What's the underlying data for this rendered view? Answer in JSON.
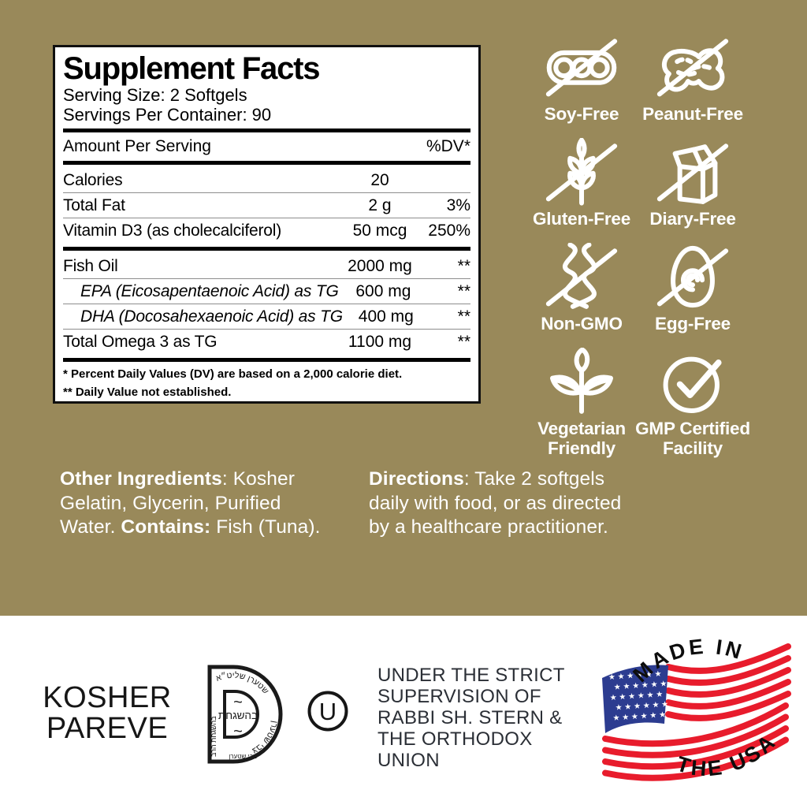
{
  "colors": {
    "olive_background": "#99895a",
    "panel_border": "#101010",
    "flag_red": "#e81c2c",
    "flag_blue": "#2c3c90",
    "text_white": "#ffffff",
    "text_dark": "#2b2f36"
  },
  "panel": {
    "title": "Supplement Facts",
    "serving_size": "Serving Size: 2 Softgels",
    "servings_per_container": "Servings Per Container: 90",
    "header": {
      "left": "Amount Per Serving",
      "right": "%DV*"
    },
    "sections": [
      {
        "rows": [
          {
            "name": "Calories",
            "amount": "20",
            "dv": ""
          },
          {
            "name": "Total Fat",
            "amount": "2 g",
            "dv": "3%"
          },
          {
            "name": "Vitamin D3 (as cholecalciferol)",
            "amount": "50 mcg",
            "dv": "250%"
          }
        ]
      },
      {
        "rows": [
          {
            "name": "Fish Oil",
            "amount": "2000 mg",
            "dv": "**"
          },
          {
            "name": "EPA (Eicosapentaenoic Acid) as TG",
            "amount": "600 mg",
            "dv": "**",
            "italic": true,
            "indent": true
          },
          {
            "name": "DHA (Docosahexaenoic Acid) as TG",
            "amount": "400 mg",
            "dv": "**",
            "italic": true,
            "indent": true
          },
          {
            "name": "Total Omega 3 as TG",
            "amount": "1100 mg",
            "dv": "**"
          }
        ]
      }
    ],
    "footnotes": [
      "* Percent Daily Values (DV) are based on a 2,000 calorie diet.",
      "** Daily Value not established."
    ]
  },
  "badges": [
    {
      "icon": "soy-free-icon",
      "label": "Soy-Free"
    },
    {
      "icon": "peanut-free-icon",
      "label": "Peanut-Free"
    },
    {
      "icon": "gluten-free-icon",
      "label": "Gluten-Free"
    },
    {
      "icon": "dairy-free-icon",
      "label": "Diary-Free"
    },
    {
      "icon": "non-gmo-icon",
      "label": "Non-GMO"
    },
    {
      "icon": "egg-free-icon",
      "label": "Egg-Free"
    },
    {
      "icon": "vegetarian-icon",
      "label": "Vegetarian Friendly"
    },
    {
      "icon": "gmp-icon",
      "label": "GMP Certified Facility"
    }
  ],
  "other_ingredients": {
    "label": "Other Ingredients",
    "text": ":  Kosher Gelatin, Glycerin, Purified Water. ",
    "contains_label": "Contains:",
    "contains_text": " Fish (Tuna)."
  },
  "directions": {
    "label": "Directions",
    "text": ": Take 2 softgels daily with food, or as directed by a healthcare practitioner."
  },
  "bottom": {
    "kosher_line1": "KOSHER",
    "kosher_line2": "PAREVE",
    "ou_letter": "U",
    "supervision": "UNDER THE STRICT\nSUPERVISION OF\nRABBI SH. STERN &\nTHE ORTHODOX\nUNION",
    "kosher_seal": {
      "center": "בהשגחת",
      "tilde": "~",
      "arc_top": "שטערן שליט״א",
      "arc_bottom": "צבי שטערן",
      "left_bar": "בהשגחת הרב"
    },
    "flag": {
      "made_in": "MADE IN",
      "the_usa": "THE USA",
      "stars": "★ ★ ★ ★ ★ ★"
    }
  }
}
